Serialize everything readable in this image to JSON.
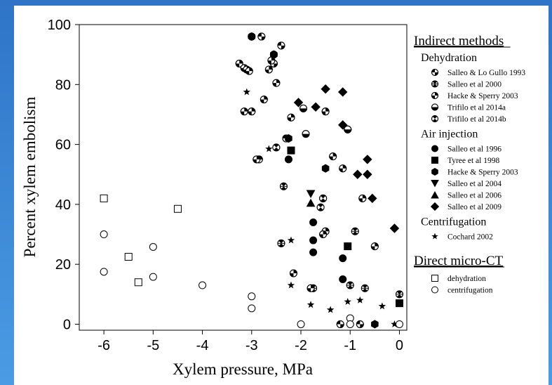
{
  "chart_data": {
    "type": "scatter",
    "xlabel": "Xylem pressure, MPa",
    "ylabel": "Percent xylem embolism",
    "xlim": [
      -6.5,
      0.15
    ],
    "ylim": [
      -2,
      100
    ],
    "xticks": [
      "-6",
      "-5",
      "-4",
      "-3",
      "-2",
      "-1",
      "0"
    ],
    "yticks": [
      "0",
      "20",
      "40",
      "60",
      "80",
      "100"
    ],
    "legend_position": "right",
    "legend_groups": [
      {
        "heading": "Indirect methods",
        "subgroups": [
          {
            "title": "Dehydration",
            "series": [
              "salleo-1993",
              "salleo-2000",
              "hacke-2003-dehyd",
              "trifilo-2014a",
              "trifilo-2014b"
            ]
          },
          {
            "title": "Air injection",
            "series": [
              "salleo-1996",
              "tyree-1998",
              "hacke-2003-air",
              "salleo-2004",
              "salleo-2006",
              "salleo-2009"
            ]
          },
          {
            "title": "Centrifugation",
            "series": [
              "cochard-2002"
            ]
          }
        ]
      },
      {
        "heading": "Direct micro-CT",
        "subgroups": [
          {
            "title": "",
            "series": [
              "ct-dehydration",
              "ct-centrifugation"
            ]
          }
        ]
      }
    ],
    "series": [
      {
        "id": "salleo-1993",
        "name": "Salleo & Lo Gullo 1993",
        "marker": "quarter-a",
        "points": [
          [
            -3.0,
            96
          ],
          [
            -2.8,
            96
          ],
          [
            -2.55,
            87
          ],
          [
            -2.4,
            93
          ],
          [
            -2.55,
            90
          ],
          [
            -2.3,
            62
          ],
          [
            -1.2,
            0
          ],
          [
            -0.8,
            0
          ]
        ]
      },
      {
        "id": "salleo-2000",
        "name": "Salleo et al 2000",
        "marker": "bowtie",
        "points": [
          [
            -2.35,
            46
          ],
          [
            -2.4,
            27
          ],
          [
            -1.75,
            12
          ],
          [
            -0.9,
            31
          ],
          [
            -0.7,
            12
          ],
          [
            0.0,
            10
          ],
          [
            -1.0,
            13
          ]
        ]
      },
      {
        "id": "hacke-2003-dehyd",
        "name": "Hacke & Sperry 2003",
        "marker": "quarter-b",
        "points": [
          [
            -3.25,
            87
          ],
          [
            -3.15,
            85.5
          ],
          [
            -3.1,
            85
          ],
          [
            -3.05,
            84.5
          ],
          [
            -2.65,
            85
          ],
          [
            -2.6,
            88
          ],
          [
            -2.5,
            80.5
          ],
          [
            -2.75,
            75
          ],
          [
            -3.15,
            71
          ],
          [
            -3.0,
            71
          ],
          [
            -2.85,
            55
          ],
          [
            -2.9,
            55
          ],
          [
            -2.2,
            69
          ],
          [
            -1.5,
            71
          ],
          [
            -2.15,
            17
          ],
          [
            -1.8,
            12
          ],
          [
            -1.5,
            31
          ],
          [
            -1.55,
            30
          ],
          [
            -0.5,
            26
          ],
          [
            -1.35,
            56
          ],
          [
            -1.15,
            52
          ],
          [
            -1.55,
            42
          ],
          [
            -0.75,
            42
          ],
          [
            -1.05,
            65
          ]
        ]
      },
      {
        "id": "trifilo-2014a",
        "name": "Trifilo et al 2014a",
        "marker": "half-bottom",
        "points": [
          [
            -1.9,
            63.5
          ],
          [
            -1.95,
            72
          ],
          [
            -1.05,
            65
          ]
        ]
      },
      {
        "id": "trifilo-2014b",
        "name": "Trifilo et al 2014b",
        "marker": "quarter-c",
        "points": [
          [
            -1.6,
            39
          ],
          [
            -1.55,
            42
          ],
          [
            -2.5,
            59
          ]
        ]
      },
      {
        "id": "salleo-1996",
        "name": "Salleo et al 1996",
        "marker": "circle-filled",
        "points": [
          [
            -1.75,
            34
          ],
          [
            -1.75,
            28
          ],
          [
            -1.75,
            24
          ],
          [
            -1.15,
            22
          ],
          [
            -1.15,
            15
          ],
          [
            -2.25,
            55
          ]
        ]
      },
      {
        "id": "tyree-1998",
        "name": "Tyree et al 1998",
        "marker": "square-filled",
        "points": [
          [
            -2.2,
            58
          ],
          [
            -1.05,
            26
          ],
          [
            0.0,
            7
          ]
        ]
      },
      {
        "id": "hacke-2003-air",
        "name": "Hacke & Sperry 2003",
        "marker": "hexagon-filled",
        "points": [
          [
            -2.25,
            62
          ],
          [
            -2.55,
            90
          ],
          [
            -3.0,
            96
          ],
          [
            -1.5,
            52
          ],
          [
            -0.5,
            0
          ]
        ]
      },
      {
        "id": "salleo-2004",
        "name": "Salleo et al 2004",
        "marker": "triangle-down-filled",
        "points": [
          [
            -1.8,
            43.5
          ]
        ]
      },
      {
        "id": "salleo-2006",
        "name": "Salleo et al 2006",
        "marker": "triangle-up-filled",
        "points": [
          [
            -1.8,
            40.5
          ]
        ]
      },
      {
        "id": "salleo-2009",
        "name": "Salleo et al 2009",
        "marker": "diamond-filled",
        "points": [
          [
            -1.5,
            78.5
          ],
          [
            -1.15,
            77.5
          ],
          [
            -1.7,
            72.5
          ],
          [
            -2.05,
            74
          ],
          [
            -1.15,
            66.5
          ],
          [
            -0.65,
            55
          ],
          [
            -0.85,
            50
          ],
          [
            -0.65,
            50
          ],
          [
            -0.55,
            42
          ],
          [
            -0.1,
            32
          ]
        ]
      },
      {
        "id": "cochard-2002",
        "name": "Cochard 2002",
        "marker": "star-filled",
        "points": [
          [
            -3.1,
            77.5
          ],
          [
            -2.65,
            58.5
          ],
          [
            -2.2,
            28
          ],
          [
            -2.2,
            13
          ],
          [
            -1.8,
            6.5
          ],
          [
            -1.4,
            4.8
          ],
          [
            -1.05,
            7.5
          ],
          [
            -0.8,
            8
          ],
          [
            -0.35,
            6
          ],
          [
            -0.1,
            0
          ]
        ]
      },
      {
        "id": "ct-dehydration",
        "name": "dehydration",
        "marker": "square-open",
        "points": [
          [
            -6.0,
            42
          ],
          [
            -4.5,
            38.5
          ],
          [
            -5.5,
            22.5
          ],
          [
            -5.3,
            14
          ]
        ]
      },
      {
        "id": "ct-centrifugation",
        "name": "centrifugation",
        "marker": "circle-open",
        "points": [
          [
            -6.0,
            30
          ],
          [
            -6.0,
            17.5
          ],
          [
            -5.0,
            25.8
          ],
          [
            -5.0,
            15.8
          ],
          [
            -4.0,
            13
          ],
          [
            -3.0,
            9.3
          ],
          [
            -3.0,
            5.3
          ],
          [
            -2.0,
            0
          ],
          [
            -1.0,
            2
          ],
          [
            -1.0,
            0
          ],
          [
            0.0,
            0
          ]
        ]
      }
    ]
  }
}
